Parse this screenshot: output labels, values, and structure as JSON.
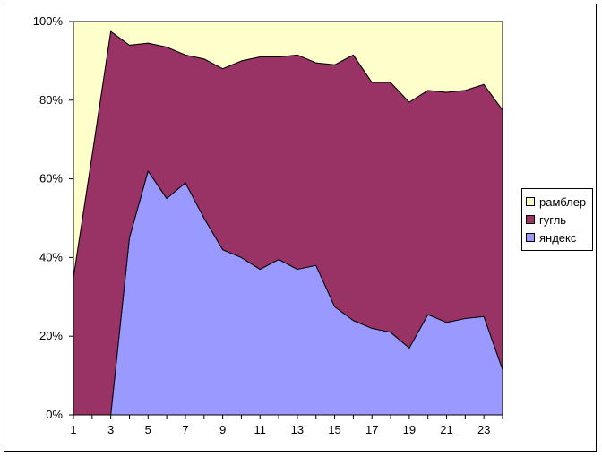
{
  "chart_data": {
    "type": "area",
    "stacking": "percent",
    "x": [
      1,
      2,
      3,
      4,
      5,
      6,
      7,
      8,
      9,
      10,
      11,
      12,
      13,
      14,
      15,
      16,
      17,
      18,
      19,
      20,
      21,
      22,
      23,
      24
    ],
    "x_tick_labels": [
      "1",
      "3",
      "5",
      "7",
      "9",
      "11",
      "13",
      "15",
      "17",
      "19",
      "21",
      "23"
    ],
    "y_tick_labels": [
      "0%",
      "20%",
      "40%",
      "60%",
      "80%",
      "100%"
    ],
    "ylim": [
      0,
      100
    ],
    "grid": false,
    "legend_position": "right",
    "series": [
      {
        "name": "яндекс",
        "color": "#9999ff",
        "values": [
          0,
          0,
          0,
          45,
          62,
          55,
          59,
          50,
          42,
          40,
          37,
          39.5,
          37,
          38,
          27.5,
          24,
          22,
          21,
          17,
          25.5,
          23.5,
          24.5,
          25,
          11.5
        ]
      },
      {
        "name": "гугль",
        "color": "#993366",
        "values": [
          35,
          66,
          97.5,
          49,
          32.5,
          38.5,
          32.5,
          40.5,
          46,
          50,
          54,
          51.5,
          54.5,
          51.5,
          61.5,
          67.5,
          62.5,
          63.5,
          62.5,
          57,
          58.5,
          58,
          59,
          66
        ]
      },
      {
        "name": "рамблер",
        "color": "#ffffcc",
        "values": [
          65,
          34,
          2.5,
          6,
          5.5,
          6.5,
          8.5,
          9.5,
          12,
          10,
          9,
          9,
          8.5,
          10.5,
          11,
          8.5,
          15.5,
          15.5,
          20.5,
          17.5,
          18,
          17.5,
          16,
          22.5
        ]
      }
    ]
  }
}
